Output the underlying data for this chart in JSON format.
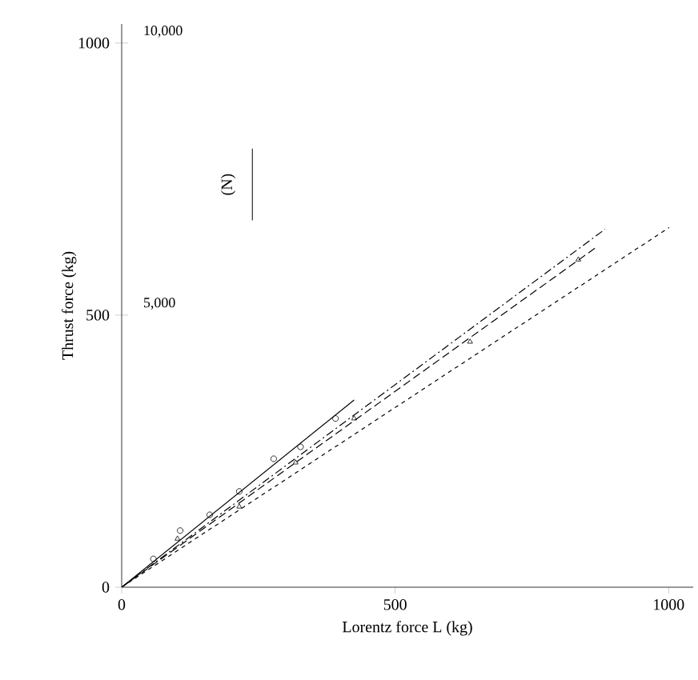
{
  "chart_data": {
    "type": "line",
    "xlabel": "Lorentz force L (kg)",
    "ylabel": "Thrust force (kg)",
    "y2label": "(N)",
    "xlim": [
      0,
      1045
    ],
    "ylim": [
      0,
      1035
    ],
    "xticks": [
      0,
      500,
      1000
    ],
    "yticks": [
      0,
      500,
      1000
    ],
    "y2lim": [
      0,
      10350
    ],
    "y2ticks": [
      {
        "value": 5000,
        "label": "5,000"
      },
      {
        "value": 10000,
        "label": "10,000"
      }
    ],
    "series": [
      {
        "type": "scatter",
        "marker": "circle",
        "color": "#000000",
        "x": [
          58,
          107,
          161,
          215,
          278,
          327,
          391
        ],
        "values": [
          52,
          104,
          133,
          176,
          236,
          258,
          310
        ]
      },
      {
        "line_style": "solid",
        "color": "#000000",
        "x": [
          0,
          425
        ],
        "values": [
          0,
          344
        ]
      },
      {
        "type": "scatter",
        "marker": "triangle",
        "color": "#000000",
        "x": [
          102,
          215,
          318,
          425,
          637,
          835
        ],
        "values": [
          89,
          148,
          229,
          310,
          451,
          602
        ]
      },
      {
        "line_style": "dashed",
        "color": "#000000",
        "x": [
          0,
          884
        ],
        "values": [
          0,
          658
        ]
      },
      {
        "line_style": "dashed",
        "color": "#000000",
        "x": [
          0,
          871
        ],
        "values": [
          0,
          627
        ]
      },
      {
        "line_style": "dotted",
        "color": "#000000",
        "x": [
          0,
          1001
        ],
        "values": [
          0,
          661
        ]
      }
    ]
  }
}
